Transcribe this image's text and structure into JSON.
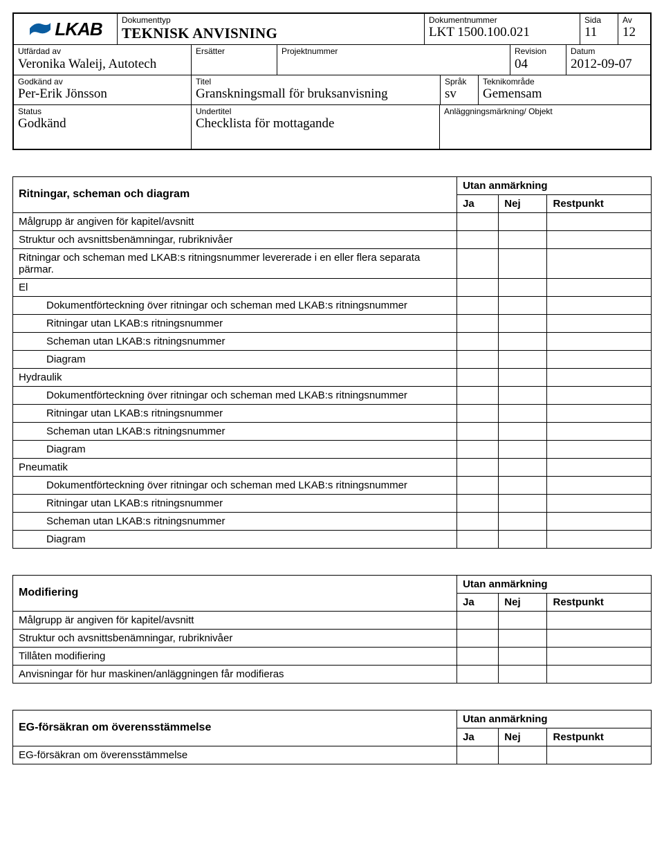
{
  "header": {
    "logo_text": "LKAB",
    "dokumenttyp_label": "Dokumenttyp",
    "dokumenttyp_value": "TEKNISK ANVISNING",
    "dokumentnummer_label": "Dokumentnummer",
    "dokumentnummer_value": "LKT 1500.100.021",
    "sida_label": "Sida",
    "sida_value": "11",
    "av_label": "Av",
    "av_value": "12",
    "utfardad_label": "Utfärdad av",
    "utfardad_value": "Veronika Waleij, Autotech",
    "ersatter_label": "Ersätter",
    "ersatter_value": "",
    "projektnummer_label": "Projektnummer",
    "projektnummer_value": "",
    "revision_label": "Revision",
    "revision_value": "04",
    "datum_label": "Datum",
    "datum_value": "2012-09-07",
    "godkand_av_label": "Godkänd av",
    "godkand_av_value": "Per-Erik Jönsson",
    "titel_label": "Titel",
    "titel_value": "Granskningsmall för bruksanvisning",
    "sprak_label": "Språk",
    "sprak_value": "sv",
    "teknikomrade_label": "Teknikområde",
    "teknikomrade_value": "Gemensam",
    "status_label": "Status",
    "status_value": "Godkänd",
    "undertitel_label": "Undertitel",
    "undertitel_value": "Checklista för mottagande",
    "anlaggning_label": "Anläggningsmärkning/ Objekt",
    "anlaggning_value": ""
  },
  "common": {
    "utan_anmarkning": "Utan anmärkning",
    "ja": "Ja",
    "nej": "Nej",
    "restpunkt": "Restpunkt"
  },
  "section1": {
    "title": "Ritningar, scheman och diagram",
    "rows": [
      {
        "text": "Målgrupp är angiven för kapitel/avsnitt",
        "indent": false
      },
      {
        "text": "Struktur och avsnittsbenämningar, rubriknivåer",
        "indent": false
      },
      {
        "text": "Ritningar och scheman med LKAB:s ritningsnummer levererade i en eller flera separata pärmar.",
        "indent": false
      },
      {
        "text": "El",
        "indent": false
      },
      {
        "text": "Dokumentförteckning över ritningar och scheman med LKAB:s ritningsnummer",
        "indent": true
      },
      {
        "text": "Ritningar utan LKAB:s ritningsnummer",
        "indent": true
      },
      {
        "text": "Scheman utan LKAB:s ritningsnummer",
        "indent": true
      },
      {
        "text": "Diagram",
        "indent": true
      },
      {
        "text": "Hydraulik",
        "indent": false
      },
      {
        "text": "Dokumentförteckning över ritningar och scheman med LKAB:s ritningsnummer",
        "indent": true
      },
      {
        "text": "Ritningar utan LKAB:s ritningsnummer",
        "indent": true
      },
      {
        "text": "Scheman utan LKAB:s ritningsnummer",
        "indent": true
      },
      {
        "text": "Diagram",
        "indent": true
      },
      {
        "text": "Pneumatik",
        "indent": false
      },
      {
        "text": "Dokumentförteckning över ritningar och scheman med LKAB:s ritningsnummer",
        "indent": true
      },
      {
        "text": "Ritningar utan LKAB:s ritningsnummer",
        "indent": true
      },
      {
        "text": "Scheman utan LKAB:s ritningsnummer",
        "indent": true
      },
      {
        "text": "Diagram",
        "indent": true
      }
    ]
  },
  "section2": {
    "title": "Modifiering",
    "rows": [
      {
        "text": "Målgrupp är angiven för kapitel/avsnitt",
        "indent": false
      },
      {
        "text": "Struktur och avsnittsbenämningar, rubriknivåer",
        "indent": false
      },
      {
        "text": "Tillåten modifiering",
        "indent": false
      },
      {
        "text": "Anvisningar för hur maskinen/anläggningen får modifieras",
        "indent": false
      }
    ]
  },
  "section3": {
    "title": "EG-försäkran om överensstämmelse",
    "rows": [
      {
        "text": "EG-försäkran om överensstämmelse",
        "indent": false
      }
    ]
  }
}
